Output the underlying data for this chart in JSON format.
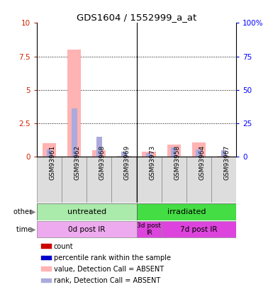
{
  "title": "GDS1604 / 1552999_a_at",
  "samples": [
    "GSM93961",
    "GSM93962",
    "GSM93968",
    "GSM93969",
    "GSM93973",
    "GSM93958",
    "GSM93964",
    "GSM93967"
  ],
  "count_values": [
    1.0,
    8.0,
    0.5,
    0.05,
    0.4,
    0.9,
    1.1,
    0.05
  ],
  "rank_values": [
    0.55,
    3.6,
    1.5,
    0.4,
    0.3,
    0.7,
    0.55,
    0.5
  ],
  "ylim": [
    0,
    10
  ],
  "yticks": [
    0,
    2.5,
    5,
    7.5,
    10
  ],
  "ytick_labels_left": [
    "0",
    "2.5",
    "5",
    "7.5",
    "10"
  ],
  "ytick_labels_right": [
    "0",
    "25",
    "50",
    "75",
    "100%"
  ],
  "color_count_absent": "#FFB3B3",
  "color_rank_absent": "#AAAADD",
  "other_row": [
    {
      "label": "untreated",
      "start": 0,
      "end": 4,
      "color": "#AAEAAA"
    },
    {
      "label": "irradiated",
      "start": 4,
      "end": 8,
      "color": "#44DD44"
    }
  ],
  "time_row": [
    {
      "label": "0d post IR",
      "start": 0,
      "end": 4,
      "color": "#EEAAEE"
    },
    {
      "label": "3d post\nIR",
      "start": 4,
      "end": 5,
      "color": "#DD44DD"
    },
    {
      "label": "7d post IR",
      "start": 5,
      "end": 8,
      "color": "#DD44DD"
    }
  ],
  "legend_items": [
    {
      "color": "#CC0000",
      "label": "count"
    },
    {
      "color": "#0000CC",
      "label": "percentile rank within the sample"
    },
    {
      "color": "#FFB3B3",
      "label": "value, Detection Call = ABSENT"
    },
    {
      "color": "#AAAADD",
      "label": "rank, Detection Call = ABSENT"
    }
  ],
  "figsize": [
    3.85,
    4.05
  ],
  "dpi": 100
}
